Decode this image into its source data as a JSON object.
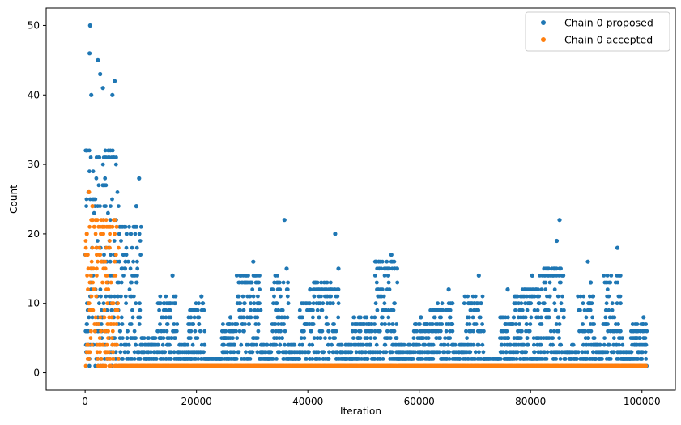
{
  "chart_data": {
    "type": "scatter",
    "title": "",
    "xlabel": "Iteration",
    "ylabel": "Count",
    "xlim": [
      -7000,
      106000
    ],
    "ylim": [
      -2.5,
      52.5
    ],
    "xticks": [
      0,
      20000,
      40000,
      60000,
      80000,
      100000
    ],
    "xtick_labels": [
      "0",
      "20000",
      "40000",
      "60000",
      "80000",
      "100000"
    ],
    "yticks": [
      0,
      10,
      20,
      30,
      40,
      50
    ],
    "ytick_labels": [
      "0",
      "10",
      "20",
      "30",
      "40",
      "50"
    ],
    "grid": false,
    "legend_position": "top-right",
    "series": [
      {
        "name": "Chain 0 proposed",
        "color": "#1f77b4",
        "segments": [
          {
            "x_start": 0,
            "x_end": 6000,
            "y_min": 1,
            "y_max": 32
          },
          {
            "x_start": 6000,
            "x_end": 10000,
            "y_min": 1,
            "y_max": 21
          },
          {
            "x_start": 10000,
            "x_end": 13000,
            "y_min": 1,
            "y_max": 5
          },
          {
            "x_start": 13000,
            "x_end": 16500,
            "y_min": 1,
            "y_max": 11
          },
          {
            "x_start": 16500,
            "x_end": 18500,
            "y_min": 1,
            "y_max": 4
          },
          {
            "x_start": 18500,
            "x_end": 21500,
            "y_min": 1,
            "y_max": 10
          },
          {
            "x_start": 21500,
            "x_end": 24500,
            "y_min": 1,
            "y_max": 2
          },
          {
            "x_start": 24500,
            "x_end": 27000,
            "y_min": 1,
            "y_max": 7
          },
          {
            "x_start": 27000,
            "x_end": 31500,
            "y_min": 1,
            "y_max": 14
          },
          {
            "x_start": 31500,
            "x_end": 33500,
            "y_min": 1,
            "y_max": 4
          },
          {
            "x_start": 33500,
            "x_end": 36500,
            "y_min": 1,
            "y_max": 14
          },
          {
            "x_start": 36500,
            "x_end": 38500,
            "y_min": 1,
            "y_max": 4
          },
          {
            "x_start": 38500,
            "x_end": 41000,
            "y_min": 1,
            "y_max": 10
          },
          {
            "x_start": 41000,
            "x_end": 45500,
            "y_min": 1,
            "y_max": 13
          },
          {
            "x_start": 45500,
            "x_end": 48000,
            "y_min": 1,
            "y_max": 4
          },
          {
            "x_start": 48000,
            "x_end": 52000,
            "y_min": 1,
            "y_max": 8
          },
          {
            "x_start": 52000,
            "x_end": 56000,
            "y_min": 1,
            "y_max": 16
          },
          {
            "x_start": 56000,
            "x_end": 59000,
            "y_min": 1,
            "y_max": 4
          },
          {
            "x_start": 59000,
            "x_end": 62000,
            "y_min": 1,
            "y_max": 7
          },
          {
            "x_start": 62000,
            "x_end": 66000,
            "y_min": 1,
            "y_max": 10
          },
          {
            "x_start": 66000,
            "x_end": 68000,
            "y_min": 1,
            "y_max": 4
          },
          {
            "x_start": 68000,
            "x_end": 71500,
            "y_min": 1,
            "y_max": 11
          },
          {
            "x_start": 71500,
            "x_end": 74500,
            "y_min": 1,
            "y_max": 2
          },
          {
            "x_start": 74500,
            "x_end": 77000,
            "y_min": 1,
            "y_max": 8
          },
          {
            "x_start": 77000,
            "x_end": 81500,
            "y_min": 1,
            "y_max": 12
          },
          {
            "x_start": 81500,
            "x_end": 86000,
            "y_min": 1,
            "y_max": 15
          },
          {
            "x_start": 86000,
            "x_end": 88500,
            "y_min": 1,
            "y_max": 4
          },
          {
            "x_start": 88500,
            "x_end": 91500,
            "y_min": 1,
            "y_max": 11
          },
          {
            "x_start": 91500,
            "x_end": 93000,
            "y_min": 1,
            "y_max": 4
          },
          {
            "x_start": 93000,
            "x_end": 96500,
            "y_min": 1,
            "y_max": 14
          },
          {
            "x_start": 96500,
            "x_end": 98000,
            "y_min": 1,
            "y_max": 3
          },
          {
            "x_start": 98000,
            "x_end": 100800,
            "y_min": 1,
            "y_max": 7
          }
        ],
        "outliers": [
          {
            "x": 900,
            "y": 50
          },
          {
            "x": 800,
            "y": 46
          },
          {
            "x": 2300,
            "y": 45
          },
          {
            "x": 2700,
            "y": 43
          },
          {
            "x": 5300,
            "y": 42
          },
          {
            "x": 3200,
            "y": 41
          },
          {
            "x": 1100,
            "y": 40
          },
          {
            "x": 300,
            "y": 32
          },
          {
            "x": 4900,
            "y": 40
          },
          {
            "x": 9700,
            "y": 28
          },
          {
            "x": 9200,
            "y": 24
          },
          {
            "x": 35800,
            "y": 22
          },
          {
            "x": 44900,
            "y": 20
          },
          {
            "x": 85200,
            "y": 22
          },
          {
            "x": 84700,
            "y": 19
          },
          {
            "x": 95600,
            "y": 18
          },
          {
            "x": 55000,
            "y": 17
          },
          {
            "x": 30200,
            "y": 16
          },
          {
            "x": 90300,
            "y": 16
          },
          {
            "x": 15700,
            "y": 14
          },
          {
            "x": 70700,
            "y": 14
          },
          {
            "x": 80300,
            "y": 14
          },
          {
            "x": 36200,
            "y": 15
          },
          {
            "x": 45500,
            "y": 15
          },
          {
            "x": 90800,
            "y": 13
          },
          {
            "x": 75900,
            "y": 12
          },
          {
            "x": 65300,
            "y": 12
          },
          {
            "x": 40400,
            "y": 12
          },
          {
            "x": 20900,
            "y": 11
          },
          {
            "x": 26100,
            "y": 8
          },
          {
            "x": 60300,
            "y": 8
          },
          {
            "x": 100300,
            "y": 8
          }
        ]
      },
      {
        "name": "Chain 0 accepted",
        "color": "#ff7f0e",
        "segments": [
          {
            "x_start": 0,
            "x_end": 6000,
            "y_min": 1,
            "y_max": 22
          },
          {
            "x_start": 6000,
            "x_end": 100800,
            "y_min": 1,
            "y_max": 1
          }
        ],
        "outliers": [
          {
            "x": 700,
            "y": 26
          },
          {
            "x": 1300,
            "y": 24
          },
          {
            "x": 300,
            "y": 20
          }
        ]
      }
    ]
  }
}
